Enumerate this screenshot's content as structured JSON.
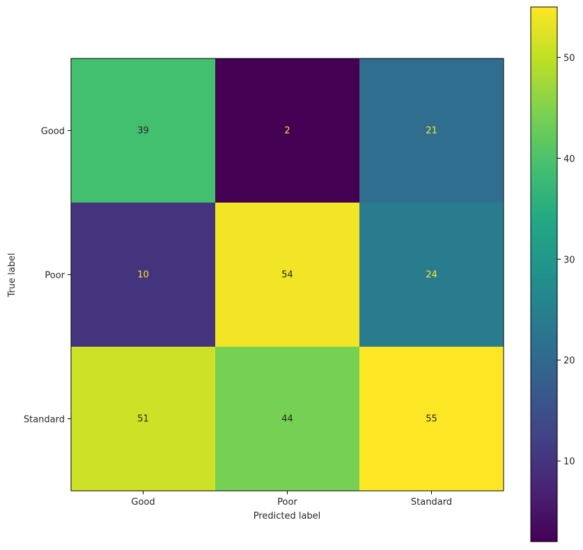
{
  "chart_data": {
    "type": "heatmap",
    "title": "",
    "xlabel": "Predicted label",
    "ylabel": "True label",
    "x_categories": [
      "Good",
      "Poor",
      "Standard"
    ],
    "y_categories": [
      "Good",
      "Poor",
      "Standard"
    ],
    "values": [
      [
        39,
        2,
        21
      ],
      [
        10,
        54,
        24
      ],
      [
        51,
        44,
        55
      ]
    ],
    "colormap": "viridis",
    "colorbar": {
      "min": 2,
      "max": 55,
      "ticks": [
        10,
        20,
        30,
        40,
        50
      ]
    },
    "text_color_dark": "#262626",
    "text_color_light": "#fde725"
  }
}
